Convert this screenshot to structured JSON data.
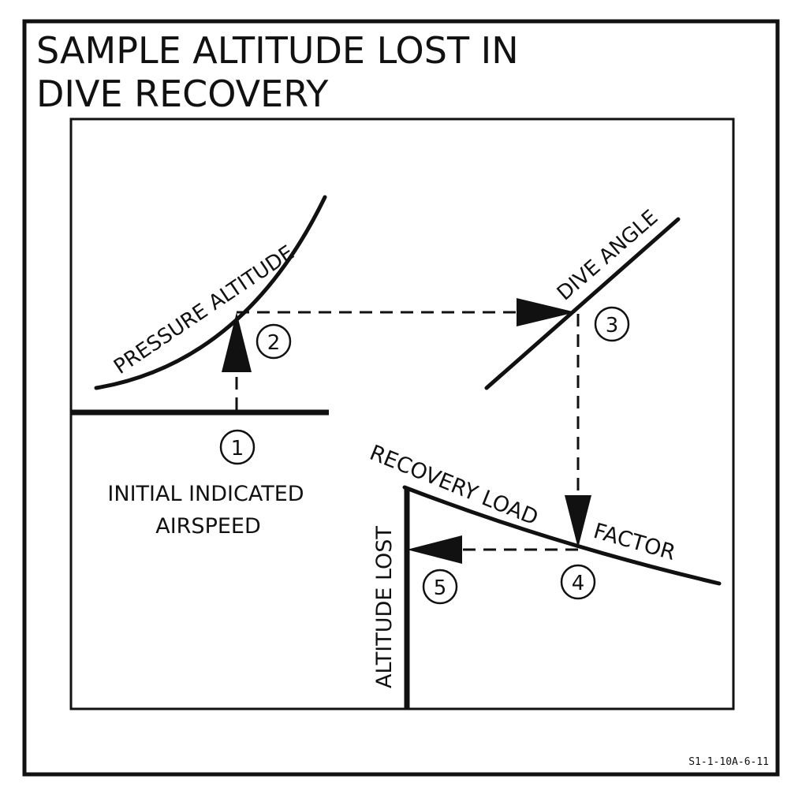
{
  "title": {
    "line1": "SAMPLE ALTITUDE LOST IN",
    "line2": "DIVE RECOVERY"
  },
  "labels": {
    "pressure_altitude": "PRESSURE ALTITUDE",
    "dive_angle": "DIVE ANGLE",
    "recovery_load": "RECOVERY LOAD",
    "factor": "FACTOR",
    "altitude_lost": "ALTITUDE LOST",
    "initial_line1": "INITIAL INDICATED",
    "initial_line2": "AIRSPEED"
  },
  "steps": [
    "1",
    "2",
    "3",
    "4",
    "5"
  ],
  "figure_code": "S1-1-10A-6-11"
}
